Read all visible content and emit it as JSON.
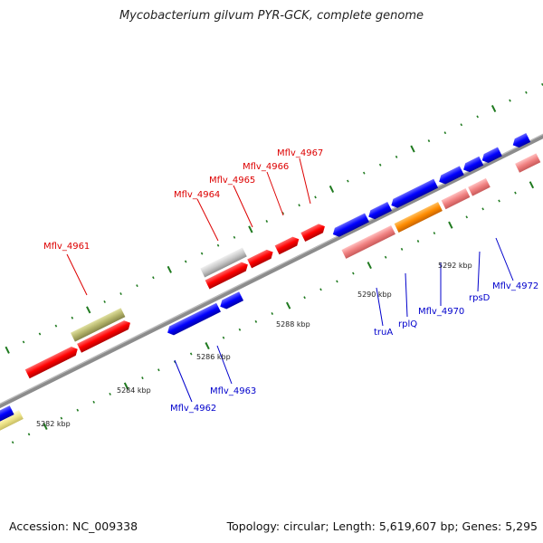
{
  "title": "Mycobacterium gilvum PYR-GCK, complete genome",
  "footer": {
    "accession": "Accession: NC_009338",
    "summary": "Topology: circular; Length: 5,619,607 bp; Genes: 5,295"
  },
  "colors": {
    "forward_gene": "#ff0000",
    "reverse_gene": "#0000ff",
    "rna_light": "#f08080",
    "orange_gene": "#ff8c00",
    "olive_gene": "#b5b56b",
    "grey_gene": "#c8c8c8",
    "pale_yellow_gene": "#f0e68c",
    "backbone": "#8c8c8c",
    "tick_major": "#1f7a1f",
    "label_forward": "#dd0000",
    "label_reverse": "#0000cc"
  },
  "coordinate_labels": [
    "5282 kbp",
    "5284 kbp",
    "5286 kbp",
    "5288 kbp",
    "5290 kbp",
    "5292 kbp"
  ],
  "gene_labels": {
    "forward": [
      "Mflv_4961",
      "Mflv_4964",
      "Mflv_4965",
      "Mflv_4966",
      "Mflv_4967"
    ],
    "reverse": [
      "Mflv_4962",
      "Mflv_4963",
      "truA",
      "rplQ",
      "Mflv_4970",
      "rpsD",
      "Mflv_4972"
    ]
  }
}
